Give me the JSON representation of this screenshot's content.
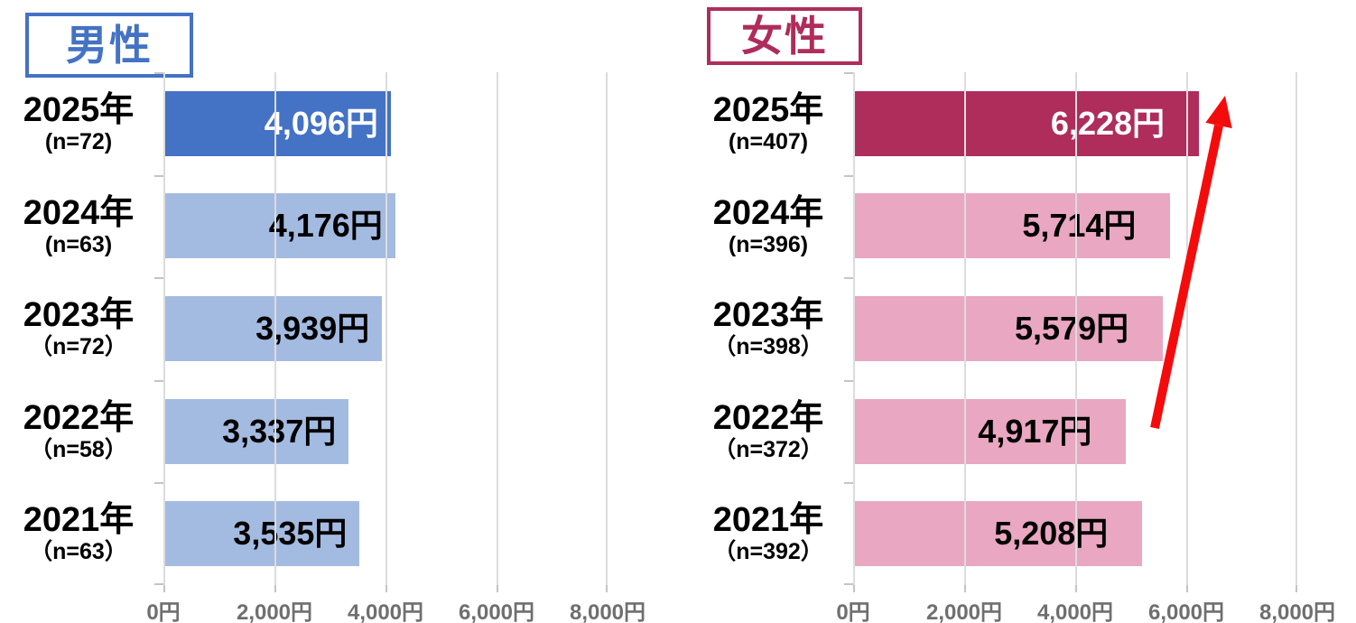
{
  "page": {
    "background": "#FFFFFF"
  },
  "styles": {
    "grid_color": "#DCDCDC",
    "tick_color": "#C4C4C4",
    "axis_text_color": "#6F6F6F",
    "category_text_color": "#000000"
  },
  "chart_data": [
    {
      "type": "bar",
      "orientation": "horizontal",
      "title": "男性",
      "accent_color": "#4472C4",
      "categories": [
        "2025年",
        "2024年",
        "2023年",
        "2022年",
        "2021年"
      ],
      "sample_sizes": [
        "(n=72)",
        "(n=63)",
        "（n=72）",
        "（n=58）",
        "（n=63）"
      ],
      "values": [
        4096,
        4176,
        3939,
        3337,
        3535
      ],
      "value_labels": [
        "4,096円",
        "4,176円",
        "3,939円",
        "3,337円",
        "3,535円"
      ],
      "bar_colors": [
        "#4472C4",
        "#A4BBE1",
        "#A4BBE1",
        "#A4BBE1",
        "#A4BBE1"
      ],
      "value_label_colors": [
        "#FFFFFF",
        "#000000",
        "#000000",
        "#000000",
        "#000000"
      ],
      "xlim": [
        0,
        8000
      ],
      "x_tick_values": [
        0,
        2000,
        4000,
        6000,
        8000
      ],
      "x_ticks": [
        "0円",
        "2,000円",
        "4,000円",
        "6,000円",
        "8,000円"
      ],
      "grid": true,
      "legend": false,
      "annotations": []
    },
    {
      "type": "bar",
      "orientation": "horizontal",
      "title": "女性",
      "accent_color": "#AE2D5A",
      "categories": [
        "2025年",
        "2024年",
        "2023年",
        "2022年",
        "2021年"
      ],
      "sample_sizes": [
        "(n=407)",
        "(n=396)",
        "（n=398）",
        "（n=372）",
        "（n=392）"
      ],
      "values": [
        6228,
        5714,
        5579,
        4917,
        5208
      ],
      "value_labels": [
        "6,228円",
        "5,714円",
        "5,579円",
        "4,917円",
        "5,208円"
      ],
      "bar_colors": [
        "#AE2D5A",
        "#E9A7C1",
        "#E9A7C1",
        "#E9A7C1",
        "#E9A7C1"
      ],
      "value_label_colors": [
        "#FFFFFF",
        "#000000",
        "#000000",
        "#000000",
        "#000000"
      ],
      "xlim": [
        0,
        8000
      ],
      "x_tick_values": [
        0,
        2000,
        4000,
        6000,
        8000
      ],
      "x_ticks": [
        "0円",
        "2,000円",
        "4,000円",
        "6,000円",
        "8,000円"
      ],
      "grid": true,
      "legend": false,
      "annotations": [
        {
          "type": "arrow",
          "color": "#F40C0C"
        }
      ]
    }
  ]
}
